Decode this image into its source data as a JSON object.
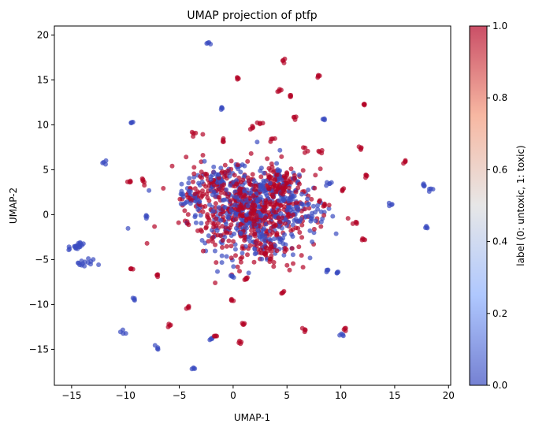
{
  "chart_data": {
    "type": "scatter",
    "title": "UMAP projection of ptfp",
    "xlabel": "UMAP-1",
    "ylabel": "UMAP-2",
    "xlim": [
      -16.6,
      20.2
    ],
    "ylim": [
      -19,
      21
    ],
    "x_ticks": [
      -15,
      -10,
      -5,
      0,
      5,
      10,
      15,
      20
    ],
    "y_ticks": [
      -15,
      -10,
      -5,
      0,
      5,
      10,
      15,
      20
    ],
    "grid": false,
    "colormap": "coolwarm",
    "color_low": "#3b4cc0",
    "color_mid": "#dddddd",
    "color_high": "#b40426",
    "alpha": 0.7,
    "colorbar": {
      "label": "label (0: untoxic, 1: toxic)",
      "range": [
        0,
        1
      ],
      "ticks": [
        0.0,
        0.2,
        0.4,
        0.6,
        0.8,
        1.0
      ],
      "tick_labels": [
        "0.0",
        "0.2",
        "0.4",
        "0.6",
        "0.8",
        "1.0"
      ]
    },
    "clusters": [
      {
        "x": 1.5,
        "y": 0.5,
        "sx": 2.8,
        "sy": 2.4,
        "n": 900,
        "toxic_frac": 0.55
      },
      {
        "x": 4.5,
        "y": 3.5,
        "sx": 0.8,
        "sy": 0.8,
        "n": 90,
        "toxic_frac": 0.7
      },
      {
        "x": -1.5,
        "y": 4.0,
        "sx": 1.0,
        "sy": 0.8,
        "n": 80,
        "toxic_frac": 0.5
      },
      {
        "x": -4.0,
        "y": 1.8,
        "sx": 0.6,
        "sy": 0.5,
        "n": 40,
        "toxic_frac": 0.3
      },
      {
        "x": 7.0,
        "y": 0.5,
        "sx": 1.0,
        "sy": 0.8,
        "n": 50,
        "toxic_frac": 0.4
      },
      {
        "x": 3.0,
        "y": -3.5,
        "sx": 1.2,
        "sy": 1.0,
        "n": 60,
        "toxic_frac": 0.6
      },
      {
        "x": -14.6,
        "y": -3.5,
        "sx": 0.3,
        "sy": 0.3,
        "n": 20,
        "toxic_frac": 0.0
      },
      {
        "x": -13.5,
        "y": -5.5,
        "sx": 0.5,
        "sy": 0.3,
        "n": 14,
        "toxic_frac": 0.0
      }
    ],
    "points": [
      {
        "x": -2.3,
        "y": 19.1,
        "label": 0
      },
      {
        "x": 4.6,
        "y": 17.2,
        "label": 1
      },
      {
        "x": 8.0,
        "y": 15.4,
        "label": 1
      },
      {
        "x": 0.5,
        "y": 15.2,
        "label": 1
      },
      {
        "x": 4.3,
        "y": 13.7,
        "label": 1
      },
      {
        "x": 5.3,
        "y": 13.2,
        "label": 1
      },
      {
        "x": 12.0,
        "y": 12.2,
        "label": 1
      },
      {
        "x": -1.0,
        "y": 11.9,
        "label": 0
      },
      {
        "x": 5.8,
        "y": 10.8,
        "label": 1
      },
      {
        "x": 8.4,
        "y": 10.6,
        "label": 0
      },
      {
        "x": -9.4,
        "y": 10.3,
        "label": 0
      },
      {
        "x": 2.5,
        "y": 10.2,
        "label": 1
      },
      {
        "x": 1.8,
        "y": 9.8,
        "label": 1
      },
      {
        "x": -3.7,
        "y": 9.0,
        "label": 1
      },
      {
        "x": -0.9,
        "y": 8.2,
        "label": 1
      },
      {
        "x": 3.7,
        "y": 8.3,
        "label": 1
      },
      {
        "x": 11.9,
        "y": 7.4,
        "label": 1
      },
      {
        "x": 6.7,
        "y": 7.3,
        "label": 1
      },
      {
        "x": 8.1,
        "y": 7.0,
        "label": 1
      },
      {
        "x": 15.9,
        "y": 5.9,
        "label": 1
      },
      {
        "x": -12.0,
        "y": 5.8,
        "label": 0
      },
      {
        "x": 12.4,
        "y": 4.3,
        "label": 1
      },
      {
        "x": 9.0,
        "y": 3.5,
        "label": 0
      },
      {
        "x": -9.6,
        "y": 3.7,
        "label": 1
      },
      {
        "x": -8.4,
        "y": 3.8,
        "label": 1
      },
      {
        "x": 17.8,
        "y": 3.2,
        "label": 0
      },
      {
        "x": 18.3,
        "y": 2.8,
        "label": 0
      },
      {
        "x": 10.2,
        "y": 2.7,
        "label": 1
      },
      {
        "x": 14.6,
        "y": 1.1,
        "label": 0
      },
      {
        "x": -8.1,
        "y": -0.1,
        "label": 0
      },
      {
        "x": 11.4,
        "y": -0.8,
        "label": 1
      },
      {
        "x": 17.9,
        "y": -1.3,
        "label": 0
      },
      {
        "x": 12.1,
        "y": -2.7,
        "label": 1
      },
      {
        "x": 8.8,
        "y": -6.3,
        "label": 0
      },
      {
        "x": 9.6,
        "y": -6.5,
        "label": 0
      },
      {
        "x": -9.4,
        "y": -6.1,
        "label": 1
      },
      {
        "x": -7.0,
        "y": -6.8,
        "label": 1
      },
      {
        "x": 0.0,
        "y": -6.9,
        "label": 0
      },
      {
        "x": 1.2,
        "y": -7.1,
        "label": 1
      },
      {
        "x": 4.7,
        "y": -8.7,
        "label": 1
      },
      {
        "x": -9.1,
        "y": -9.4,
        "label": 0
      },
      {
        "x": -0.1,
        "y": -9.5,
        "label": 1
      },
      {
        "x": -4.2,
        "y": -10.4,
        "label": 1
      },
      {
        "x": -6.0,
        "y": -12.3,
        "label": 1
      },
      {
        "x": 1.0,
        "y": -12.1,
        "label": 1
      },
      {
        "x": 6.6,
        "y": -12.8,
        "label": 1
      },
      {
        "x": 10.4,
        "y": -12.8,
        "label": 1
      },
      {
        "x": 10.2,
        "y": -13.3,
        "label": 0
      },
      {
        "x": -10.2,
        "y": -13.0,
        "label": 0
      },
      {
        "x": -2.1,
        "y": -13.8,
        "label": 0
      },
      {
        "x": -1.7,
        "y": -13.5,
        "label": 1
      },
      {
        "x": 0.6,
        "y": -14.2,
        "label": 1
      },
      {
        "x": -7.0,
        "y": -14.8,
        "label": 0
      },
      {
        "x": -3.7,
        "y": -17.1,
        "label": 0
      }
    ]
  }
}
